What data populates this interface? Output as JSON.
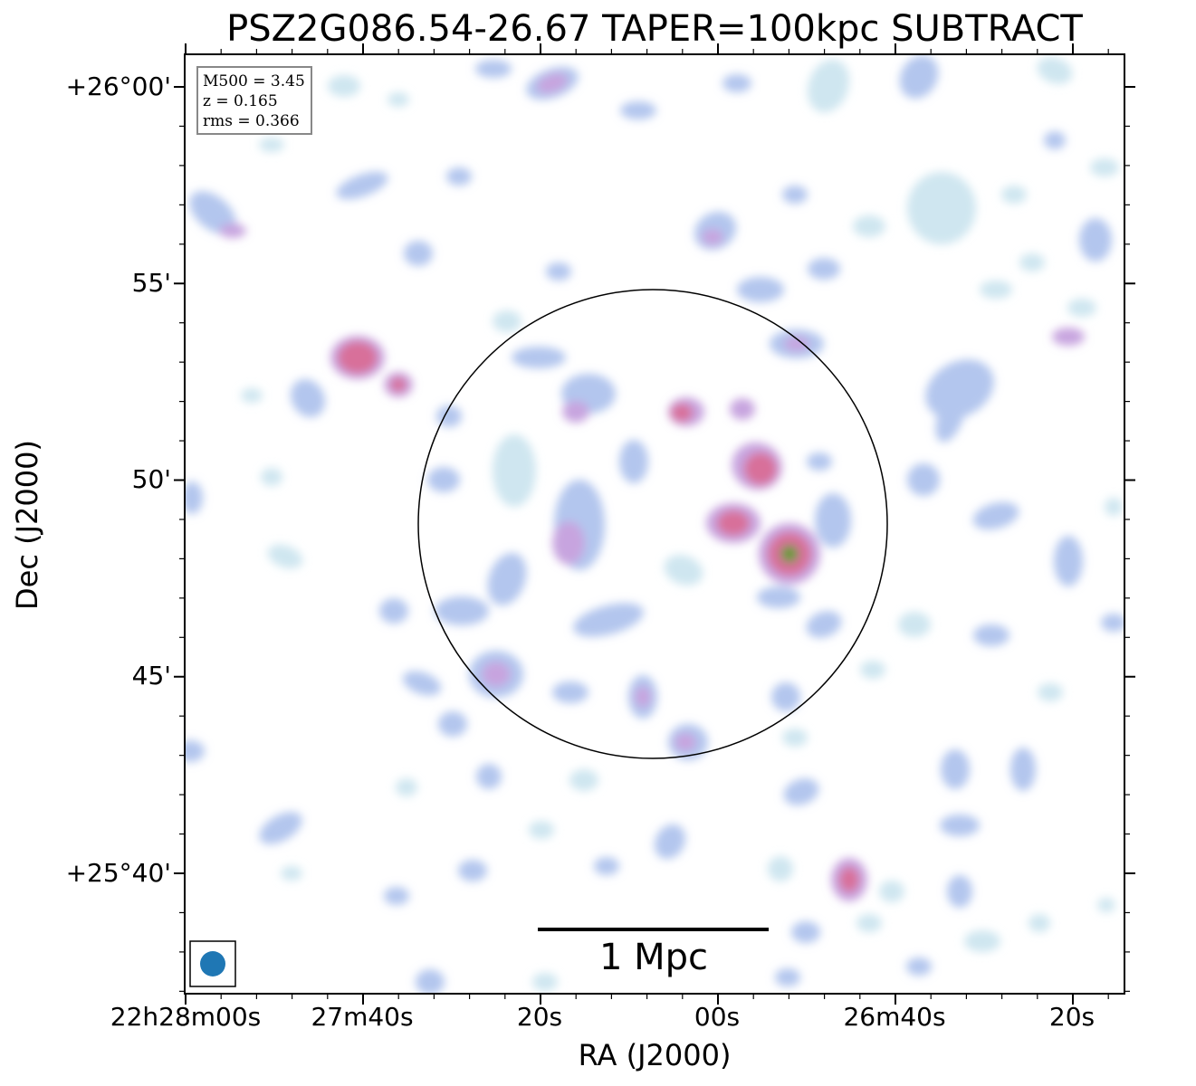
{
  "title": "PSZ2G086.54-26.67 TAPER=100kpc SUBTRACT",
  "axes": {
    "xlabel": "RA (J2000)",
    "ylabel": "Dec (J2000)",
    "x_ticks": [
      "22h28m00s",
      "27m40s",
      "20s",
      "00s",
      "26m40s",
      "20s"
    ],
    "y_ticks": [
      "+26°00'",
      "55'",
      "50'",
      "45'",
      "+25°40'"
    ]
  },
  "info_box": {
    "mass": "M500 = 3.45",
    "redshift": "z = 0.165",
    "rms": "rms = 0.366"
  },
  "scale_bar": {
    "label": "1 Mpc"
  },
  "colors": {
    "faint": "#cfe6f0",
    "low": "#b3c6ee",
    "mid": "#c7a4df",
    "high": "#d86f9a",
    "peak": "#6a9a3a",
    "beam": "#1f77b4"
  }
}
